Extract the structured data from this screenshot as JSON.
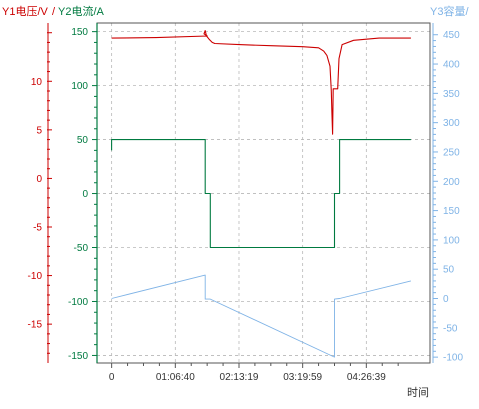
{
  "chart_data": {
    "type": "line",
    "title": "",
    "axis_titles": {
      "y1": "Y1电压/V",
      "separator": "/",
      "y2": "Y2电流/A",
      "y3": "Y3容量/",
      "x": "时间"
    },
    "colors": {
      "y1": "#cc0000",
      "y2": "#007a40",
      "y3": "#7fb3e6",
      "plot_border": "#555555"
    },
    "grid": true,
    "x_axis": {
      "range": [
        -0.23,
        5.0
      ],
      "ticks": [
        {
          "v": 0,
          "label": "0"
        },
        {
          "v": 1,
          "label": "01:06:40"
        },
        {
          "v": 2,
          "label": "02:13:19"
        },
        {
          "v": 3,
          "label": "03:19:59"
        },
        {
          "v": 4,
          "label": "04:26:39"
        }
      ]
    },
    "y1_axis": {
      "range": [
        -19,
        16
      ],
      "ticks": [
        10,
        5,
        0,
        -5,
        -10,
        -15
      ],
      "tick_labels": [
        "10",
        "5",
        "0",
        "-5",
        "-10",
        "-15"
      ]
    },
    "y2_axis": {
      "range": [
        -157,
        158
      ],
      "ticks": [
        150,
        100,
        50,
        0,
        -50,
        -100,
        -150
      ],
      "tick_labels": [
        "150",
        "100",
        "50",
        "0",
        "-50",
        "-100",
        "-150"
      ]
    },
    "y3_axis": {
      "range": [
        -110,
        470
      ],
      "ticks": [
        450,
        400,
        350,
        300,
        250,
        200,
        150,
        100,
        50,
        0,
        -50,
        -100
      ],
      "tick_labels": [
        "450",
        "400",
        "350",
        "300",
        "250",
        "200",
        "150",
        "100",
        "50",
        "0",
        "-50",
        "-100"
      ]
    },
    "series": [
      {
        "key": "y1",
        "axis": "y2",
        "points": [
          [
            0,
            144
          ],
          [
            0.7,
            144.5
          ],
          [
            1.5,
            146
          ],
          [
            1.45,
            148
          ],
          [
            1.47,
            151
          ],
          [
            1.49,
            146
          ],
          [
            1.53,
            143
          ],
          [
            1.58,
            140
          ],
          [
            1.62,
            139
          ],
          [
            2.0,
            138
          ],
          [
            2.5,
            137
          ],
          [
            3.0,
            136
          ],
          [
            3.25,
            135
          ],
          [
            3.33,
            132
          ],
          [
            3.38,
            128
          ],
          [
            3.43,
            118
          ],
          [
            3.45,
            95
          ],
          [
            3.46,
            75
          ],
          [
            3.47,
            55
          ],
          [
            3.48,
            97
          ],
          [
            3.55,
            97
          ],
          [
            3.57,
            125
          ],
          [
            3.62,
            138
          ],
          [
            3.8,
            142
          ],
          [
            4.2,
            144
          ],
          [
            4.7,
            144
          ]
        ]
      },
      {
        "key": "y2",
        "axis": "y2",
        "points": [
          [
            0,
            40
          ],
          [
            0,
            50
          ],
          [
            1.47,
            50
          ],
          [
            1.47,
            0
          ],
          [
            1.55,
            0
          ],
          [
            1.55,
            -50
          ],
          [
            3.5,
            -50
          ],
          [
            3.5,
            0
          ],
          [
            3.58,
            0
          ],
          [
            3.58,
            50
          ],
          [
            4.7,
            50
          ]
        ]
      },
      {
        "key": "y3",
        "axis": "y3",
        "points": [
          [
            0,
            0
          ],
          [
            1.47,
            40
          ],
          [
            1.47,
            -1
          ],
          [
            1.55,
            -1
          ],
          [
            3.5,
            -100
          ],
          [
            3.5,
            -1
          ],
          [
            3.58,
            0
          ],
          [
            4.7,
            30
          ]
        ]
      }
    ]
  }
}
